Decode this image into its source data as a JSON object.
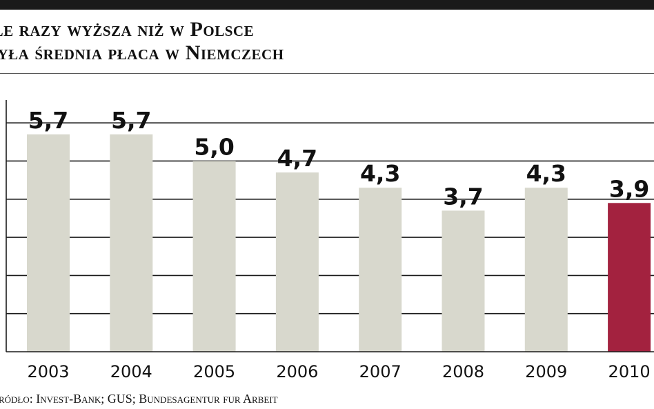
{
  "chart_data": {
    "type": "bar",
    "title_lines": [
      "ile razy wyższa niż w Polsce",
      "była średnia płaca w Niemczech"
    ],
    "categories": [
      "2003",
      "2004",
      "2005",
      "2006",
      "2007",
      "2008",
      "2009",
      "2010"
    ],
    "values": [
      5.7,
      5.7,
      5.0,
      4.7,
      4.3,
      3.7,
      4.3,
      3.9
    ],
    "value_labels": [
      "5,7",
      "5,7",
      "5,0",
      "4,7",
      "4,3",
      "3,7",
      "4,3",
      "3,9"
    ],
    "ylim": [
      0,
      6.6
    ],
    "grid": true,
    "colors": {
      "bar": "#d8d8cd",
      "highlight_bar": "#a3223f",
      "grid": "#1a1a1a",
      "plot_background": "#ffffff"
    },
    "highlight_category": "2010",
    "source": "źródło: Invest-Bank; GUS; Bundesagentur fur Arbeit"
  }
}
